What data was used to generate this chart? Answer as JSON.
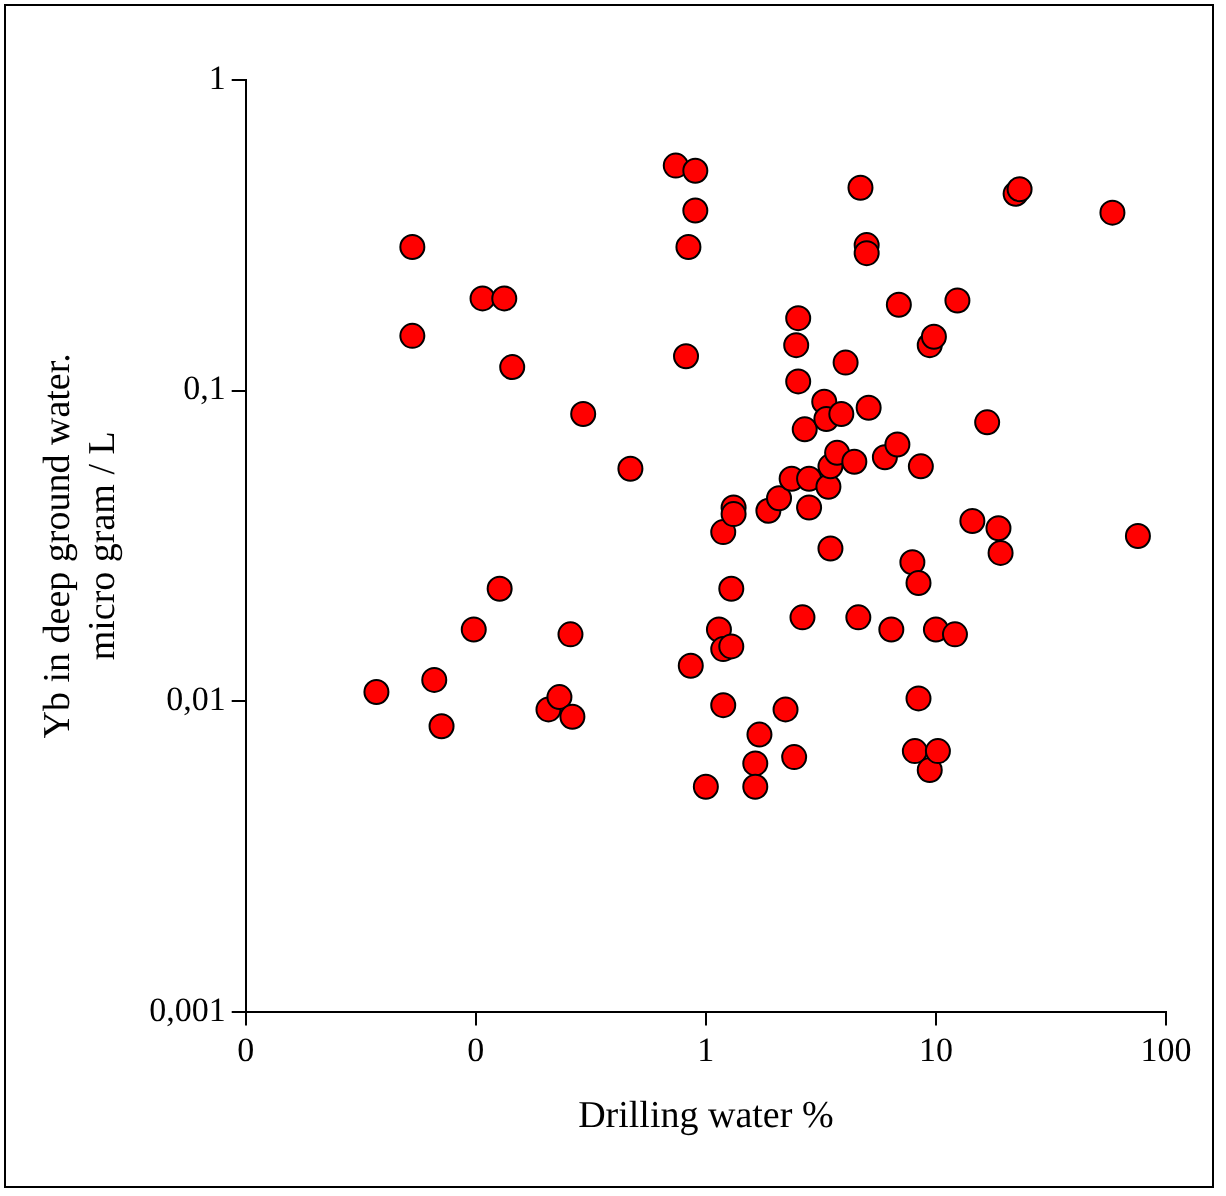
{
  "chart_data": {
    "type": "scatter",
    "xlabel": "Drilling water %",
    "ylabel": "Yb in deep ground water.\nmicro gram / L",
    "log": "xy",
    "grid": false,
    "legend": false,
    "marker": "circle",
    "xlim": [
      0.01,
      100
    ],
    "xticks": [
      {
        "value": 0.01,
        "label": "0"
      },
      {
        "value": 0.1,
        "label": "0"
      },
      1,
      10,
      100
    ],
    "ylim": [
      0.001,
      1
    ],
    "yticks": [
      {
        "value": 0.001,
        "label": "0,001"
      },
      {
        "value": 0.01,
        "label": "0,01"
      },
      {
        "value": 0.1,
        "label": "0,1"
      },
      1
    ],
    "series": [
      {
        "color": "#ff0000",
        "x": [
          0.037,
          0.053,
          0.053,
          0.066,
          0.071,
          0.098,
          0.107,
          0.133,
          0.127,
          0.144,
          0.207,
          0.231,
          0.263,
          0.258,
          0.293,
          0.47,
          0.74,
          0.9,
          0.9,
          0.84,
          0.82,
          0.86,
          1.0,
          1.14,
          1.19,
          1.19,
          1.19,
          1.29,
          1.29,
          1.32,
          1.32,
          1.64,
          1.64,
          1.71,
          1.87,
          2.08,
          2.22,
          2.36,
          2.42,
          2.47,
          2.52,
          2.52,
          2.63,
          2.69,
          2.81,
          2.81,
          3.27,
          3.34,
          3.41,
          3.48,
          3.48,
          3.72,
          3.88,
          4.05,
          4.42,
          4.6,
          4.7,
          5.0,
          5.0,
          5.1,
          6.0,
          6.4,
          6.8,
          6.9,
          7.9,
          8.4,
          8.4,
          8.1,
          8.6,
          9.4,
          9.4,
          9.8,
          10,
          10.2,
          12.1,
          12.4,
          14.4,
          16.7,
          18.7,
          19.1,
          22.2,
          23.1,
          58.5,
          75.5
        ],
        "values": [
          0.0107,
          0.29,
          0.15,
          0.0117,
          0.0083,
          0.017,
          0.198,
          0.198,
          0.023,
          0.119,
          0.0094,
          0.0103,
          0.0089,
          0.0164,
          0.084,
          0.056,
          0.53,
          0.51,
          0.38,
          0.29,
          0.129,
          0.013,
          0.0053,
          0.017,
          0.0147,
          0.035,
          0.0097,
          0.023,
          0.015,
          0.042,
          0.04,
          0.0063,
          0.0053,
          0.0078,
          0.041,
          0.045,
          0.0094,
          0.052,
          0.0066,
          0.14,
          0.171,
          0.107,
          0.0186,
          0.075,
          0.052,
          0.042,
          0.092,
          0.081,
          0.049,
          0.031,
          0.057,
          0.063,
          0.084,
          0.123,
          0.059,
          0.0186,
          0.45,
          0.294,
          0.277,
          0.088,
          0.061,
          0.017,
          0.067,
          0.189,
          0.028,
          0.024,
          0.0102,
          0.0069,
          0.057,
          0.14,
          0.006,
          0.149,
          0.017,
          0.0069,
          0.0164,
          0.195,
          0.038,
          0.079,
          0.036,
          0.03,
          0.43,
          0.445,
          0.374,
          0.034
        ]
      }
    ]
  }
}
